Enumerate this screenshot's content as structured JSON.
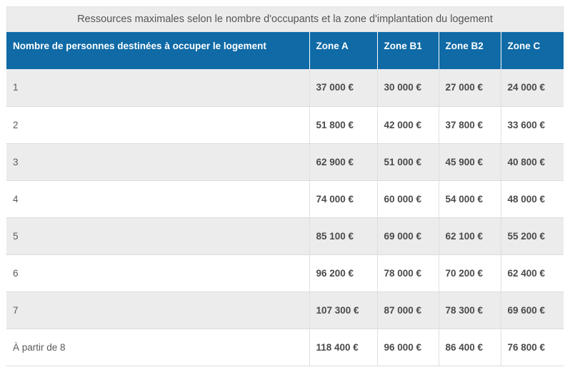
{
  "caption": "Ressources maximales selon le nombre d'occupants et la zone d'implantation du logement",
  "headers": [
    "Nombre de personnes destinées à occuper le logement",
    "Zone A",
    "Zone B1",
    "Zone B2",
    "Zone C"
  ],
  "rows": [
    [
      "1",
      "37 000 €",
      "30 000 €",
      "27 000 €",
      "24 000 €"
    ],
    [
      "2",
      "51 800 €",
      "42 000 €",
      "37 800 €",
      "33 600 €"
    ],
    [
      "3",
      "62 900 €",
      "51 000 €",
      "45 900 €",
      "40 800 €"
    ],
    [
      "4",
      "74 000 €",
      "60 000 €",
      "54 000 €",
      "48 000 €"
    ],
    [
      "5",
      "85 100 €",
      "69 000 €",
      "62 100 €",
      "55 200 €"
    ],
    [
      "6",
      "96 200 €",
      "78 000 €",
      "70 200 €",
      "62 400 €"
    ],
    [
      "7",
      "107 300 €",
      "87 000 €",
      "78 300 €",
      "69 600 €"
    ],
    [
      "À partir de 8",
      "118 400 €",
      "96 000 €",
      "86 400 €",
      "76 800 €"
    ]
  ],
  "colors": {
    "header_bg": "#0f6aa6",
    "shaded_row_bg": "#ececed",
    "caption_bg": "#ececec"
  }
}
